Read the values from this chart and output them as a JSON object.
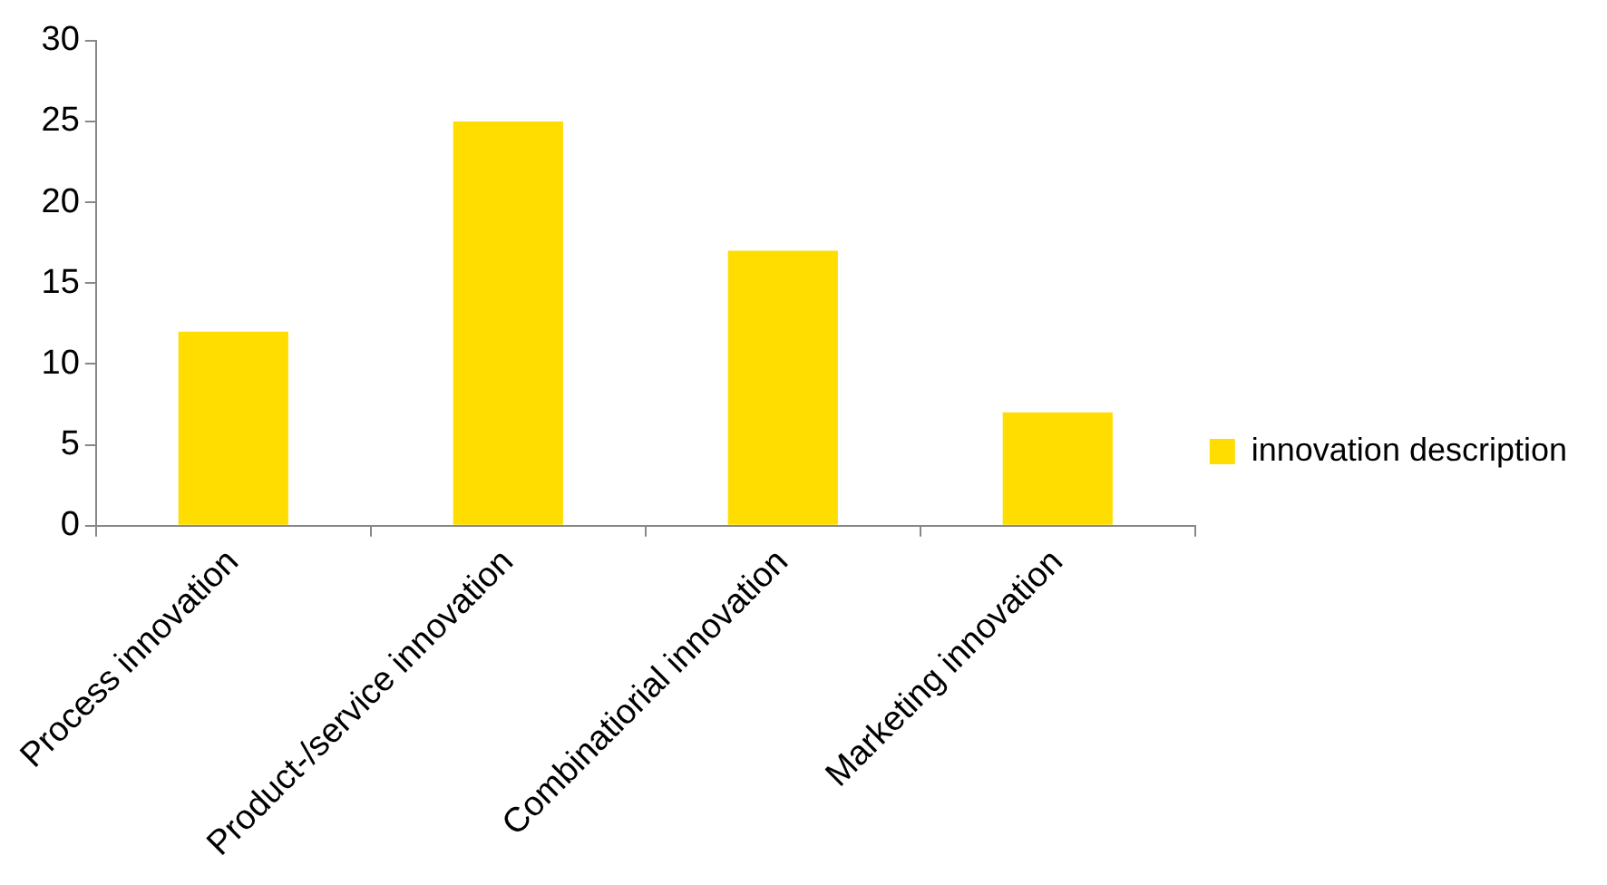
{
  "chart_data": {
    "type": "bar",
    "categories": [
      "Process innovation",
      "Product-/service innovation",
      "Combinatiorial innovation",
      "Marketing innovation"
    ],
    "series": [
      {
        "name": "innovation description",
        "color": "#ffdd00",
        "values": [
          12,
          25,
          17,
          7
        ]
      }
    ],
    "ylim": [
      0,
      30
    ],
    "yticks": [
      0,
      5,
      10,
      15,
      20,
      25,
      30
    ],
    "grid": false,
    "legend": "right"
  }
}
